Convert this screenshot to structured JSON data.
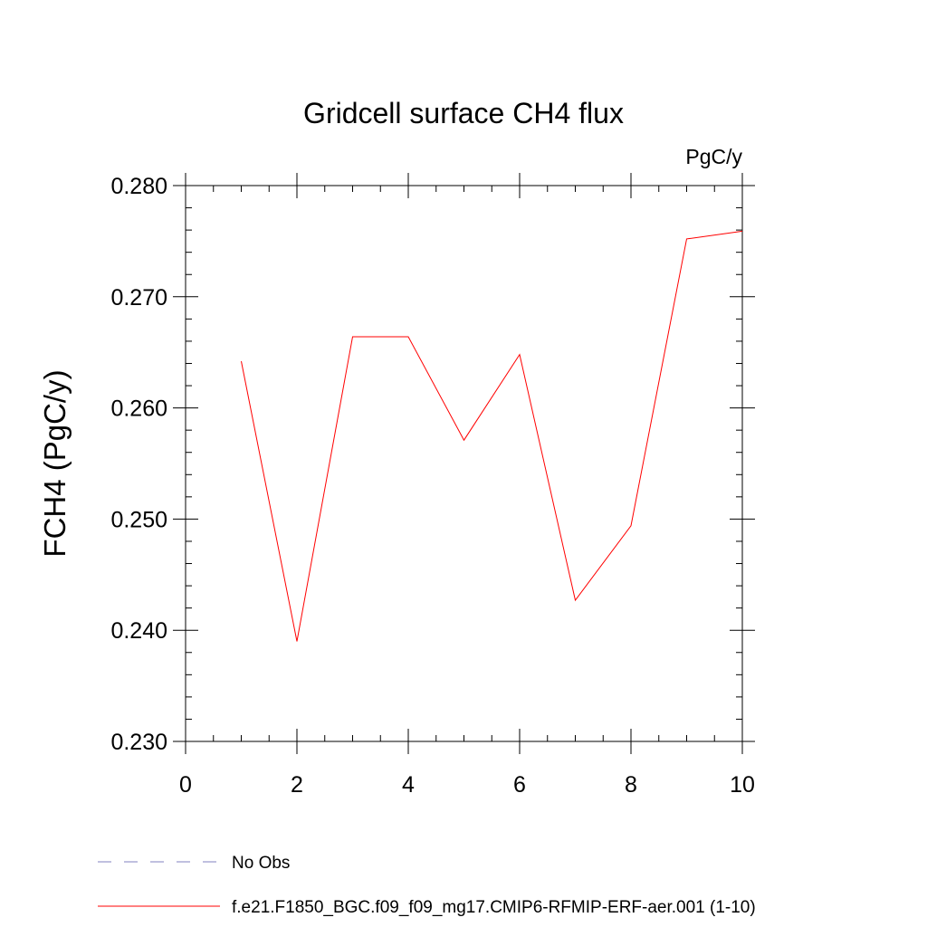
{
  "chart_data": {
    "type": "line",
    "title": "Gridcell surface CH4 flux",
    "units_label": "PgC/y",
    "ylabel": "FCH4  (PgC/y)",
    "xlabel": "",
    "xlim": [
      0,
      10
    ],
    "ylim": [
      0.23,
      0.28
    ],
    "x_ticks": [
      0,
      2,
      4,
      6,
      8,
      10
    ],
    "x_tick_labels": [
      "0",
      "2",
      "4",
      "6",
      "8",
      "10"
    ],
    "y_ticks": [
      0.23,
      0.24,
      0.25,
      0.26,
      0.27,
      0.28
    ],
    "y_tick_labels": [
      "0.230",
      "0.240",
      "0.250",
      "0.260",
      "0.270",
      "0.280"
    ],
    "grid": false,
    "legend_position": "bottom-left",
    "series": [
      {
        "name": "f.e21.F1850_BGC.f09_f09_mg17.CMIP6-RFMIP-ERF-aer.001 (1-10)",
        "color": "#ff0000",
        "style": "solid",
        "x": [
          1,
          2,
          3,
          4,
          5,
          6,
          7,
          8,
          9,
          10
        ],
        "values": [
          0.2642,
          0.239,
          0.2664,
          0.2664,
          0.2571,
          0.2648,
          0.2427,
          0.2494,
          0.2752,
          0.2759
        ]
      }
    ],
    "legend": [
      {
        "name": "No Obs",
        "color": "#8080c0",
        "style": "dashed"
      },
      {
        "name": "f.e21.F1850_BGC.f09_f09_mg17.CMIP6-RFMIP-ERF-aer.001 (1-10)",
        "color": "#ff0000",
        "style": "solid"
      }
    ]
  }
}
